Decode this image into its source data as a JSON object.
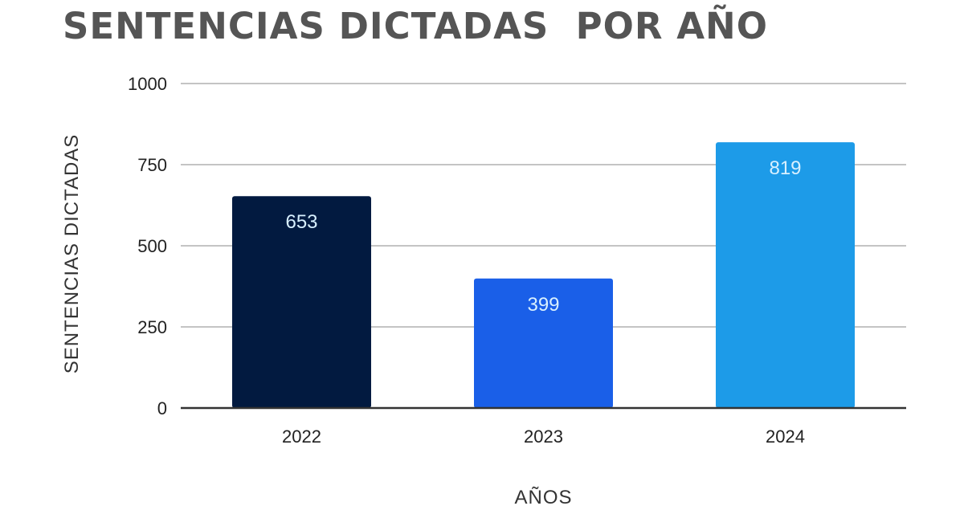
{
  "chart_data": {
    "type": "bar",
    "title": "SENTENCIAS DICTADAS  POR AÑO",
    "xlabel": "AÑOS",
    "ylabel": "SENTENCIAS DICTADAS",
    "categories": [
      "2022",
      "2023",
      "2024"
    ],
    "values": [
      653,
      399,
      819
    ],
    "data_labels": [
      "653",
      "399",
      "819"
    ],
    "colors": [
      "#021a40",
      "#1a5fe8",
      "#1d9be8"
    ],
    "ylim": [
      0,
      1000
    ],
    "yticks": [
      0,
      250,
      500,
      750,
      1000
    ],
    "ytick_labels": [
      "0",
      "250",
      "500",
      "750",
      "1000"
    ],
    "grid": true,
    "legend": "none"
  }
}
